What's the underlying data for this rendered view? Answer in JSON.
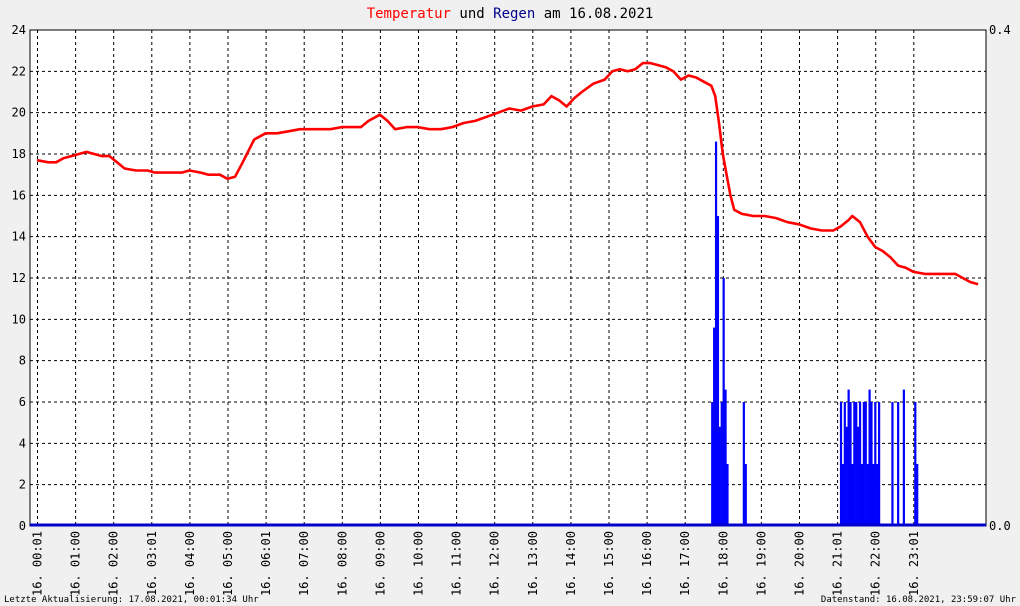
{
  "title": {
    "part1": "Temperatur",
    "part2": " und ",
    "part3": "Regen",
    "part4": " am 16.08.2021",
    "color1": "#ff0000",
    "color2": "#000000",
    "color3": "#00008b",
    "color4": "#000000"
  },
  "footer": {
    "left": "Letzte Aktualisierung: 17.08.2021, 00:01:34 Uhr",
    "right": "Datenstand: 16.08.2021, 23:59:07 Uhr"
  },
  "chart_data": {
    "type": "line",
    "grid": true,
    "y_left": {
      "min": 0,
      "max": 24,
      "ticks": [
        0,
        2,
        4,
        6,
        8,
        10,
        12,
        14,
        16,
        18,
        20,
        22,
        24
      ]
    },
    "y_right": {
      "min": 0,
      "max": 0.4,
      "tick_labels": [
        "0.0",
        "0.4"
      ]
    },
    "x_range_hours": [
      0,
      24
    ],
    "x_tick_labels": [
      "16. 00:01",
      "16. 01:00",
      "16. 02:00",
      "16. 03:01",
      "16. 04:00",
      "16. 05:00",
      "16. 06:01",
      "16. 07:00",
      "16. 08:00",
      "16. 09:00",
      "16. 10:00",
      "16. 11:00",
      "16. 12:00",
      "16. 13:00",
      "16. 14:00",
      "16. 15:00",
      "16. 16:00",
      "16. 17:00",
      "16. 18:00",
      "16. 19:00",
      "16. 20:00",
      "16. 21:01",
      "16. 22:00",
      "16. 23:01"
    ],
    "colors": {
      "temperature": "#ff0000",
      "rain": "#0000ff",
      "grid": "#000000",
      "plot_bg": "#ffffff",
      "page_bg": "#f0f0f0"
    },
    "series": [
      {
        "name": "Temperatur",
        "axis": "left",
        "points": [
          [
            0.0,
            17.7
          ],
          [
            0.3,
            17.6
          ],
          [
            0.5,
            17.6
          ],
          [
            0.7,
            17.8
          ],
          [
            0.9,
            17.9
          ],
          [
            1.1,
            18.0
          ],
          [
            1.3,
            18.1
          ],
          [
            1.5,
            18.0
          ],
          [
            1.7,
            17.9
          ],
          [
            1.9,
            17.9
          ],
          [
            2.1,
            17.6
          ],
          [
            2.3,
            17.3
          ],
          [
            2.6,
            17.2
          ],
          [
            2.9,
            17.2
          ],
          [
            3.1,
            17.1
          ],
          [
            3.5,
            17.1
          ],
          [
            3.8,
            17.1
          ],
          [
            4.0,
            17.2
          ],
          [
            4.3,
            17.1
          ],
          [
            4.5,
            17.0
          ],
          [
            4.8,
            17.0
          ],
          [
            5.0,
            16.8
          ],
          [
            5.2,
            16.9
          ],
          [
            5.4,
            17.6
          ],
          [
            5.7,
            18.7
          ],
          [
            6.0,
            19.0
          ],
          [
            6.3,
            19.0
          ],
          [
            6.6,
            19.1
          ],
          [
            6.9,
            19.2
          ],
          [
            7.2,
            19.2
          ],
          [
            7.5,
            19.2
          ],
          [
            7.7,
            19.2
          ],
          [
            8.0,
            19.3
          ],
          [
            8.3,
            19.3
          ],
          [
            8.5,
            19.3
          ],
          [
            8.7,
            19.6
          ],
          [
            9.0,
            19.9
          ],
          [
            9.2,
            19.6
          ],
          [
            9.4,
            19.2
          ],
          [
            9.7,
            19.3
          ],
          [
            10.0,
            19.3
          ],
          [
            10.3,
            19.2
          ],
          [
            10.6,
            19.2
          ],
          [
            10.9,
            19.3
          ],
          [
            11.2,
            19.5
          ],
          [
            11.5,
            19.6
          ],
          [
            11.8,
            19.8
          ],
          [
            12.1,
            20.0
          ],
          [
            12.4,
            20.2
          ],
          [
            12.7,
            20.1
          ],
          [
            13.0,
            20.3
          ],
          [
            13.3,
            20.4
          ],
          [
            13.5,
            20.8
          ],
          [
            13.7,
            20.6
          ],
          [
            13.9,
            20.3
          ],
          [
            14.1,
            20.7
          ],
          [
            14.3,
            21.0
          ],
          [
            14.6,
            21.4
          ],
          [
            14.9,
            21.6
          ],
          [
            15.1,
            22.0
          ],
          [
            15.3,
            22.1
          ],
          [
            15.5,
            22.0
          ],
          [
            15.7,
            22.1
          ],
          [
            15.9,
            22.4
          ],
          [
            16.1,
            22.4
          ],
          [
            16.3,
            22.3
          ],
          [
            16.5,
            22.2
          ],
          [
            16.7,
            22.0
          ],
          [
            16.9,
            21.6
          ],
          [
            17.1,
            21.8
          ],
          [
            17.3,
            21.7
          ],
          [
            17.5,
            21.5
          ],
          [
            17.7,
            21.3
          ],
          [
            17.8,
            20.8
          ],
          [
            17.9,
            19.5
          ],
          [
            18.0,
            18.0
          ],
          [
            18.1,
            17.0
          ],
          [
            18.2,
            16.0
          ],
          [
            18.3,
            15.3
          ],
          [
            18.5,
            15.1
          ],
          [
            18.8,
            15.0
          ],
          [
            19.1,
            15.0
          ],
          [
            19.4,
            14.9
          ],
          [
            19.7,
            14.7
          ],
          [
            20.0,
            14.6
          ],
          [
            20.3,
            14.4
          ],
          [
            20.6,
            14.3
          ],
          [
            20.9,
            14.3
          ],
          [
            21.1,
            14.5
          ],
          [
            21.3,
            14.8
          ],
          [
            21.4,
            15.0
          ],
          [
            21.6,
            14.7
          ],
          [
            21.8,
            14.0
          ],
          [
            22.0,
            13.5
          ],
          [
            22.2,
            13.3
          ],
          [
            22.4,
            13.0
          ],
          [
            22.6,
            12.6
          ],
          [
            22.8,
            12.5
          ],
          [
            23.0,
            12.3
          ],
          [
            23.3,
            12.2
          ],
          [
            23.6,
            12.2
          ],
          [
            23.9,
            12.2
          ],
          [
            24.1,
            12.2
          ],
          [
            24.3,
            12.0
          ],
          [
            24.5,
            11.8
          ],
          [
            24.7,
            11.7
          ]
        ]
      },
      {
        "name": "Regen",
        "axis": "right",
        "bars": [
          [
            17.72,
            0.1
          ],
          [
            17.77,
            0.16
          ],
          [
            17.82,
            0.31
          ],
          [
            17.87,
            0.25
          ],
          [
            17.92,
            0.08
          ],
          [
            17.97,
            0.1
          ],
          [
            18.02,
            0.2
          ],
          [
            18.07,
            0.11
          ],
          [
            18.12,
            0.05
          ],
          [
            18.55,
            0.1
          ],
          [
            18.6,
            0.05
          ],
          [
            21.1,
            0.1
          ],
          [
            21.15,
            0.05
          ],
          [
            21.2,
            0.1
          ],
          [
            21.25,
            0.08
          ],
          [
            21.3,
            0.11
          ],
          [
            21.35,
            0.1
          ],
          [
            21.4,
            0.05
          ],
          [
            21.45,
            0.1
          ],
          [
            21.5,
            0.1
          ],
          [
            21.55,
            0.08
          ],
          [
            21.6,
            0.1
          ],
          [
            21.65,
            0.05
          ],
          [
            21.7,
            0.1
          ],
          [
            21.75,
            0.1
          ],
          [
            21.8,
            0.05
          ],
          [
            21.85,
            0.11
          ],
          [
            21.9,
            0.1
          ],
          [
            21.95,
            0.05
          ],
          [
            22.0,
            0.1
          ],
          [
            22.05,
            0.05
          ],
          [
            22.1,
            0.1
          ],
          [
            22.45,
            0.1
          ],
          [
            22.6,
            0.1
          ],
          [
            22.75,
            0.11
          ],
          [
            23.05,
            0.1
          ],
          [
            23.1,
            0.05
          ]
        ]
      }
    ]
  }
}
